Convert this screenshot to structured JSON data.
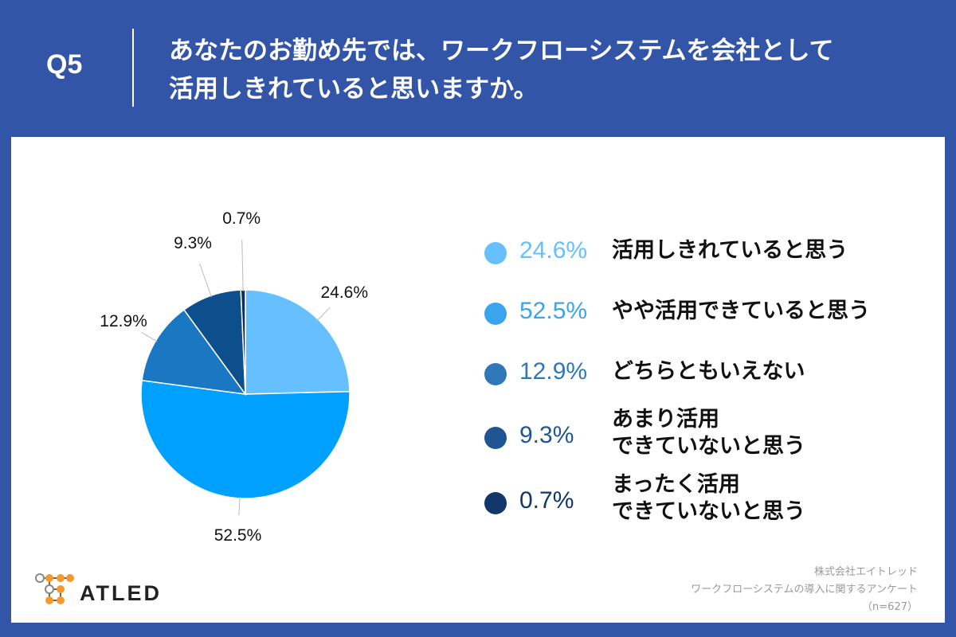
{
  "header": {
    "q_number": "Q5",
    "question_line1": "あなたのお勤め先では、ワークフローシステムを会社として",
    "question_line2": "活用しきれていると思いますか。"
  },
  "chart_data": {
    "type": "pie",
    "title": "あなたのお勤め先では、ワークフローシステムを会社として活用しきれていると思いますか。",
    "slices": [
      {
        "label": "活用しきれていると思う",
        "value": 24.6,
        "value_label": "24.6%",
        "color": "#66bfff"
      },
      {
        "label": "やや活用できていると思う",
        "value": 52.5,
        "value_label": "52.5%",
        "color": "#00a0ff"
      },
      {
        "label": "どちらともいえない",
        "value": 12.9,
        "value_label": "12.9%",
        "color": "#1a78c2"
      },
      {
        "label": "あまり活用できていないと思う",
        "value": 9.3,
        "value_label": "9.3%",
        "color": "#0d4f8c"
      },
      {
        "label": "まったく活用できていないと思う",
        "value": 0.7,
        "value_label": "0.7%",
        "color": "#0a2f5e"
      }
    ]
  },
  "legend": {
    "items": [
      {
        "pct": "24.6%",
        "line1": "活用しきれていると思う",
        "line2": "",
        "color": "#66bfff"
      },
      {
        "pct": "52.5%",
        "line1": "やや活用できていると思う",
        "line2": "",
        "color": "#3aa4ee"
      },
      {
        "pct": "12.9%",
        "line1": "どちらともいえない",
        "line2": "",
        "color": "#2f77b8"
      },
      {
        "pct": "9.3%",
        "line1": "あまり活用",
        "line2": "できていないと思う",
        "color": "#1f5592"
      },
      {
        "pct": "0.7%",
        "line1": "まったく活用",
        "line2": "できていないと思う",
        "color": "#12376a"
      }
    ]
  },
  "logo": {
    "text": "ATLED"
  },
  "source": {
    "company": "株式会社エイトレッド",
    "survey": "ワークフローシステムの導入に関するアンケート",
    "sample": "（n=627）"
  }
}
